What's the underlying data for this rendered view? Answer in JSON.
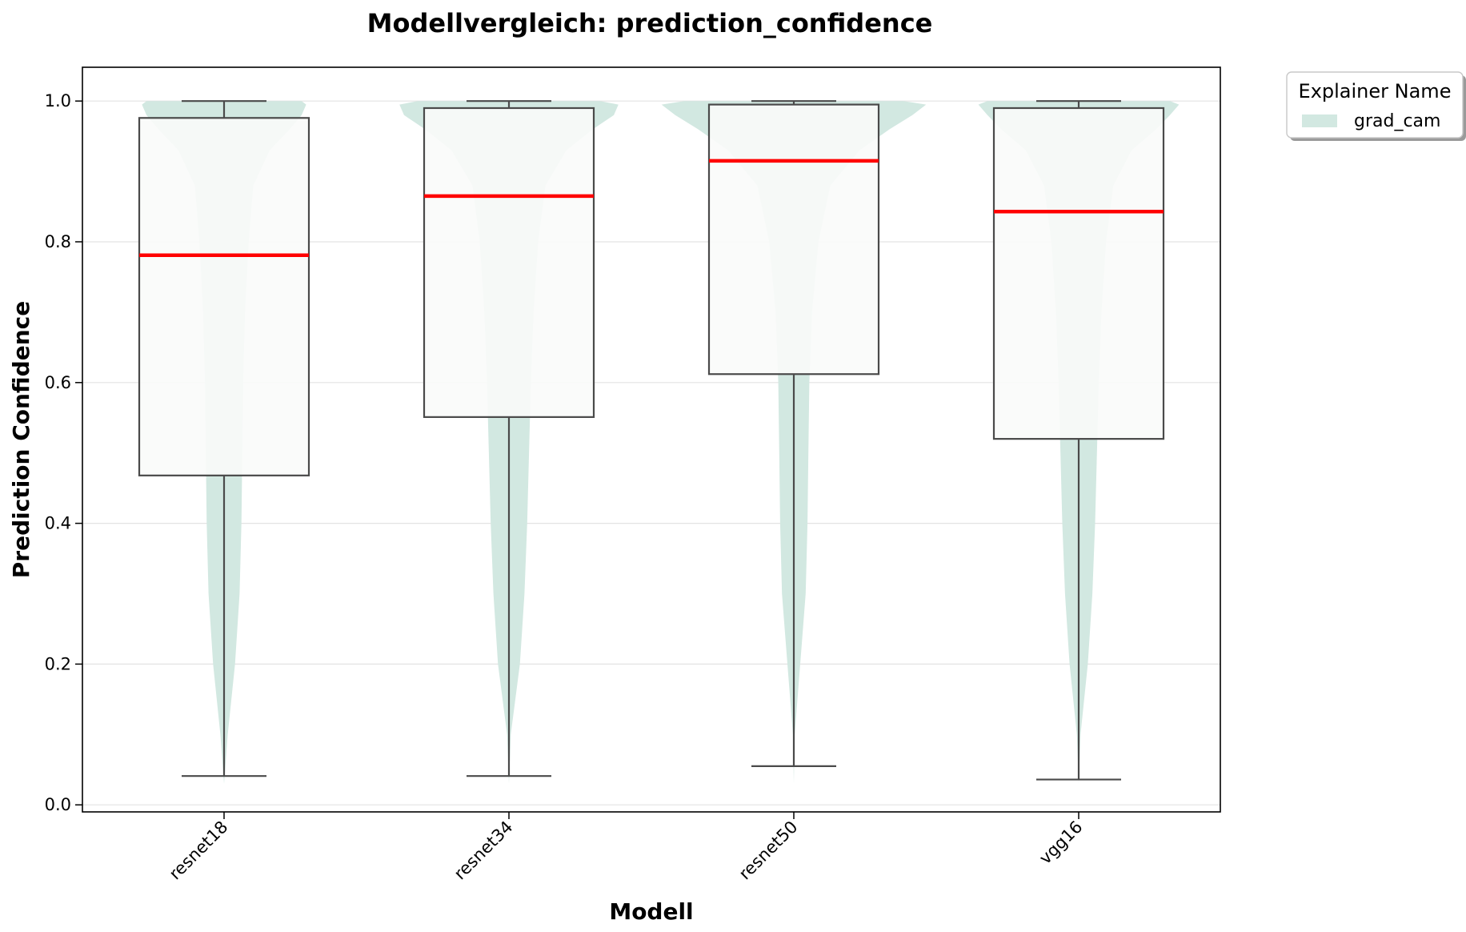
{
  "chart_data": {
    "type": "boxplot",
    "title": "Modellvergleich: prediction_confidence",
    "xlabel": "Modell",
    "ylabel": "Prediction Confidence",
    "ylim": [
      -0.01,
      1.048
    ],
    "yticks": [
      0.0,
      0.2,
      0.4,
      0.6,
      0.8,
      1.0
    ],
    "ytick_labels": [
      "0.0",
      "0.2",
      "0.4",
      "0.6",
      "0.8",
      "1.0"
    ],
    "grid": "y",
    "legend": {
      "title": "Explainer Name",
      "placement": "outside-top-right",
      "entries": [
        {
          "label": "grad_cam",
          "color": "#d2e8e1"
        }
      ]
    },
    "colors": {
      "violin": "#d2e8e1",
      "median": "#ff0000",
      "box_edge": "#4a4a4a",
      "box_fill": "#f9fbfa"
    },
    "categories": [
      "resnet18",
      "resnet34",
      "resnet50",
      "vgg16"
    ],
    "series": [
      {
        "name": "grad_cam",
        "boxes": [
          {
            "min": 0.041,
            "q1": 0.468,
            "median": 0.781,
            "q3": 0.976,
            "max": 1.0
          },
          {
            "min": 0.041,
            "q1": 0.551,
            "median": 0.865,
            "q3": 0.99,
            "max": 1.0
          },
          {
            "min": 0.055,
            "q1": 0.612,
            "median": 0.915,
            "q3": 0.995,
            "max": 1.0
          },
          {
            "min": 0.036,
            "q1": 0.52,
            "median": 0.843,
            "q3": 0.99,
            "max": 1.0
          }
        ]
      }
    ],
    "violin_density": {
      "y": [
        0.03,
        0.1,
        0.2,
        0.3,
        0.4,
        0.5,
        0.6,
        0.7,
        0.8,
        0.88,
        0.93,
        0.96,
        0.98,
        0.995,
        1.0
      ],
      "widths": [
        [
          0.0,
          0.04,
          0.12,
          0.17,
          0.19,
          0.2,
          0.21,
          0.23,
          0.27,
          0.32,
          0.5,
          0.72,
          0.85,
          0.9,
          0.85
        ],
        [
          0.0,
          0.02,
          0.12,
          0.17,
          0.2,
          0.22,
          0.24,
          0.27,
          0.32,
          0.4,
          0.63,
          0.92,
          1.15,
          1.2,
          1.0
        ],
        [
          0.0,
          0.01,
          0.07,
          0.13,
          0.15,
          0.16,
          0.17,
          0.2,
          0.27,
          0.4,
          0.72,
          1.05,
          1.3,
          1.45,
          1.2
        ],
        [
          0.0,
          0.02,
          0.1,
          0.15,
          0.18,
          0.2,
          0.22,
          0.25,
          0.3,
          0.38,
          0.58,
          0.85,
          1.0,
          1.1,
          1.0
        ]
      ]
    }
  }
}
